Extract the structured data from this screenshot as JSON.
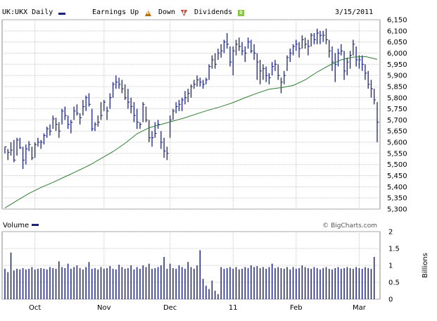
{
  "header": {
    "symbol": "UK:UKX Daily",
    "earnings_label": "Earnings Up",
    "earnings_up_glyph": "E",
    "down_label": "Down",
    "earnings_down_glyph": "E",
    "dividends_label": "Dividends",
    "dividends_glyph": "D",
    "date": "3/15/2011"
  },
  "volume_panel": {
    "label": "Volume",
    "unit_label": "Billions",
    "credit": "© BigCharts.com"
  },
  "colors": {
    "price_bar": "#1a237e",
    "moving_average": "#2e7d32",
    "grid": "#c8c8c8",
    "up_icon": "#b86a00",
    "down_icon": "#c0392b",
    "dividend_icon": "#8bc34a"
  },
  "chart_data": [
    {
      "type": "ohlc",
      "title": "UK:UKX Daily",
      "x_tick_labels": [
        "Oct",
        "Nov",
        "Dec",
        "11",
        "Feb",
        "Mar"
      ],
      "x_tick_index": [
        10,
        33,
        55,
        76,
        97,
        118
      ],
      "y_tick_labels": [
        "6,150",
        "6,100",
        "6,050",
        "6,000",
        "5,950",
        "5,900",
        "5,850",
        "5,800",
        "5,750",
        "5,700",
        "5,650",
        "5,600",
        "5,550",
        "5,500",
        "5,450",
        "5,400",
        "5,350",
        "5,300"
      ],
      "ylim": [
        5300,
        6150
      ],
      "grid": true,
      "bars": [
        [
          5580,
          5550,
          5580
        ],
        [
          5570,
          5520,
          5555
        ],
        [
          5600,
          5540,
          5565
        ],
        [
          5610,
          5510,
          5520
        ],
        [
          5620,
          5540,
          5610
        ],
        [
          5620,
          5570,
          5575
        ],
        [
          5580,
          5480,
          5520
        ],
        [
          5590,
          5500,
          5570
        ],
        [
          5605,
          5560,
          5590
        ],
        [
          5580,
          5520,
          5530
        ],
        [
          5600,
          5530,
          5590
        ],
        [
          5620,
          5580,
          5600
        ],
        [
          5610,
          5570,
          5600
        ],
        [
          5640,
          5590,
          5630
        ],
        [
          5670,
          5620,
          5660
        ],
        [
          5680,
          5630,
          5650
        ],
        [
          5720,
          5660,
          5705
        ],
        [
          5710,
          5650,
          5680
        ],
        [
          5690,
          5620,
          5650
        ],
        [
          5750,
          5680,
          5740
        ],
        [
          5760,
          5700,
          5720
        ],
        [
          5720,
          5660,
          5680
        ],
        [
          5700,
          5640,
          5690
        ],
        [
          5760,
          5700,
          5740
        ],
        [
          5770,
          5720,
          5730
        ],
        [
          5730,
          5680,
          5710
        ],
        [
          5790,
          5720,
          5760
        ],
        [
          5810,
          5740,
          5800
        ],
        [
          5820,
          5760,
          5770
        ],
        [
          5750,
          5650,
          5660
        ],
        [
          5690,
          5650,
          5680
        ],
        [
          5720,
          5670,
          5690
        ],
        [
          5780,
          5700,
          5720
        ],
        [
          5790,
          5740,
          5780
        ],
        [
          5760,
          5700,
          5740
        ],
        [
          5820,
          5750,
          5800
        ],
        [
          5870,
          5800,
          5860
        ],
        [
          5900,
          5840,
          5870
        ],
        [
          5890,
          5840,
          5860
        ],
        [
          5880,
          5820,
          5840
        ],
        [
          5860,
          5790,
          5800
        ],
        [
          5840,
          5750,
          5780
        ],
        [
          5800,
          5730,
          5760
        ],
        [
          5780,
          5690,
          5720
        ],
        [
          5750,
          5660,
          5690
        ],
        [
          5690,
          5660,
          5680
        ],
        [
          5780,
          5690,
          5770
        ],
        [
          5760,
          5690,
          5700
        ],
        [
          5700,
          5600,
          5620
        ],
        [
          5650,
          5580,
          5620
        ],
        [
          5690,
          5620,
          5640
        ],
        [
          5700,
          5660,
          5680
        ],
        [
          5650,
          5570,
          5600
        ],
        [
          5620,
          5530,
          5560
        ],
        [
          5580,
          5520,
          5550
        ],
        [
          5720,
          5620,
          5700
        ],
        [
          5750,
          5700,
          5740
        ],
        [
          5780,
          5730,
          5760
        ],
        [
          5790,
          5740,
          5770
        ],
        [
          5800,
          5740,
          5790
        ],
        [
          5830,
          5770,
          5800
        ],
        [
          5840,
          5780,
          5820
        ],
        [
          5860,
          5800,
          5850
        ],
        [
          5880,
          5840,
          5860
        ],
        [
          5900,
          5850,
          5880
        ],
        [
          5890,
          5850,
          5870
        ],
        [
          5880,
          5840,
          5860
        ],
        [
          5890,
          5860,
          5880
        ],
        [
          5950,
          5880,
          5940
        ],
        [
          5990,
          5930,
          5970
        ],
        [
          6000,
          5930,
          5950
        ],
        [
          6020,
          5970,
          6000
        ],
        [
          6040,
          5980,
          6010
        ],
        [
          6060,
          6000,
          6050
        ],
        [
          6090,
          6020,
          6040
        ],
        [
          6030,
          5940,
          5960
        ],
        [
          6030,
          5900,
          6010
        ],
        [
          6060,
          5990,
          6040
        ],
        [
          6070,
          6010,
          6030
        ],
        [
          6050,
          5990,
          6010
        ],
        [
          6030,
          5960,
          6000
        ],
        [
          6070,
          6020,
          6050
        ],
        [
          6060,
          6000,
          6010
        ],
        [
          6040,
          5970,
          6000
        ],
        [
          6000,
          5880,
          5960
        ],
        [
          5970,
          5860,
          5920
        ],
        [
          5950,
          5880,
          5930
        ],
        [
          5940,
          5870,
          5900
        ],
        [
          5910,
          5860,
          5890
        ],
        [
          5960,
          5900,
          5940
        ],
        [
          5970,
          5920,
          5950
        ],
        [
          5950,
          5880,
          5900
        ],
        [
          5890,
          5820,
          5870
        ],
        [
          5920,
          5860,
          5900
        ],
        [
          5990,
          5920,
          5980
        ],
        [
          6020,
          5960,
          6000
        ],
        [
          6040,
          5990,
          6030
        ],
        [
          6060,
          6010,
          6040
        ],
        [
          6050,
          5980,
          6020
        ],
        [
          6080,
          6020,
          6060
        ],
        [
          6070,
          6020,
          6040
        ],
        [
          6060,
          5990,
          6030
        ],
        [
          6090,
          6030,
          6080
        ],
        [
          6090,
          6040,
          6060
        ],
        [
          6110,
          6040,
          6090
        ],
        [
          6100,
          6040,
          6080
        ],
        [
          6100,
          6050,
          6080
        ],
        [
          6110,
          6040,
          6060
        ],
        [
          6060,
          5980,
          6010
        ],
        [
          6030,
          5920,
          5960
        ],
        [
          6000,
          5870,
          5950
        ],
        [
          6020,
          5940,
          6000
        ],
        [
          6040,
          5990,
          6010
        ],
        [
          6010,
          5880,
          5920
        ],
        [
          5980,
          5900,
          5960
        ],
        [
          6010,
          5930,
          5990
        ],
        [
          6060,
          5990,
          6040
        ],
        [
          6030,
          5940,
          5970
        ],
        [
          5990,
          5930,
          5970
        ],
        [
          5990,
          5920,
          5950
        ],
        [
          5950,
          5880,
          5910
        ],
        [
          5920,
          5840,
          5860
        ],
        [
          5880,
          5800,
          5840
        ],
        [
          5840,
          5770,
          5790
        ],
        [
          5780,
          5600,
          5690
        ]
      ],
      "moving_average": {
        "values": [
          [
            0,
            5305
          ],
          [
            4,
            5338
          ],
          [
            8,
            5370
          ],
          [
            12,
            5397
          ],
          [
            16,
            5420
          ],
          [
            20,
            5445
          ],
          [
            24,
            5470
          ],
          [
            28,
            5496
          ],
          [
            32,
            5527
          ],
          [
            36,
            5558
          ],
          [
            40,
            5595
          ],
          [
            44,
            5638
          ],
          [
            48,
            5665
          ],
          [
            52,
            5680
          ],
          [
            56,
            5695
          ],
          [
            60,
            5710
          ],
          [
            64,
            5728
          ],
          [
            68,
            5745
          ],
          [
            72,
            5760
          ],
          [
            76,
            5778
          ],
          [
            80,
            5800
          ],
          [
            84,
            5820
          ],
          [
            88,
            5838
          ],
          [
            92,
            5845
          ],
          [
            96,
            5855
          ],
          [
            100,
            5880
          ],
          [
            104,
            5915
          ],
          [
            108,
            5945
          ],
          [
            112,
            5970
          ],
          [
            116,
            5982
          ],
          [
            120,
            5985
          ],
          [
            124,
            5972
          ]
        ]
      }
    },
    {
      "type": "bar",
      "ylabel": "Billions",
      "y_tick_labels": [
        "2",
        "1.5",
        "1",
        "0.5",
        "0"
      ],
      "ylim": [
        0,
        2
      ],
      "values": [
        0.9,
        0.8,
        1.38,
        0.85,
        0.9,
        0.88,
        0.92,
        0.88,
        0.9,
        0.95,
        0.88,
        0.9,
        0.92,
        0.9,
        0.88,
        0.95,
        0.92,
        0.9,
        1.12,
        0.95,
        0.92,
        1.05,
        0.9,
        0.95,
        1.0,
        0.92,
        0.88,
        0.95,
        1.1,
        0.9,
        0.92,
        0.88,
        0.95,
        0.9,
        0.92,
        0.98,
        0.9,
        0.88,
        1.02,
        0.95,
        0.9,
        0.92,
        1.0,
        0.88,
        0.95,
        0.9,
        1.0,
        0.95,
        1.05,
        0.9,
        0.92,
        0.95,
        1.0,
        1.25,
        0.9,
        1.05,
        0.92,
        0.9,
        1.0,
        0.95,
        0.9,
        1.1,
        0.95,
        0.9,
        1.0,
        1.45,
        0.6,
        0.4,
        0.3,
        0.55,
        0.25,
        0.15,
        0.95,
        0.9,
        0.92,
        0.95,
        0.9,
        0.95,
        0.88,
        0.9,
        0.95,
        0.92,
        1.0,
        0.95,
        0.98,
        0.92,
        0.95,
        0.9,
        0.95,
        1.05,
        0.92,
        0.95,
        0.92,
        0.9,
        0.95,
        0.88,
        0.95,
        0.9,
        0.92,
        1.0,
        0.95,
        0.92,
        0.9,
        0.95,
        0.92,
        0.88,
        0.92,
        0.95,
        0.9,
        0.88,
        0.92,
        0.95,
        0.9,
        0.92,
        0.95,
        0.92,
        0.9,
        0.95,
        0.92,
        0.9,
        0.95,
        0.92,
        0.9,
        1.25
      ]
    }
  ]
}
